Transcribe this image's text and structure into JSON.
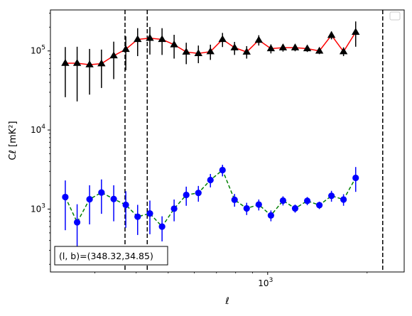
{
  "chart_data": {
    "type": "line",
    "xscale": "log",
    "yscale": "log",
    "xlim": [
      220,
      2590
    ],
    "ylim": [
      160,
      330000
    ],
    "xlabel": "ℓ",
    "ylabel": "Cℓ  [mK²]",
    "xticks": [
      {
        "value": 1000,
        "base": "10",
        "exp": "3"
      }
    ],
    "yticks": [
      {
        "value": 1000,
        "base": "10",
        "exp": "3"
      },
      {
        "value": 10000,
        "base": "10",
        "exp": "4"
      },
      {
        "value": 100000,
        "base": "10",
        "exp": "5"
      }
    ],
    "grid": false,
    "legend": {
      "placement": "top-right",
      "entries": []
    },
    "annotation": "(l, b)=(348.32,34.85)",
    "vlines": [
      370,
      432,
      2230
    ],
    "series": [
      {
        "color": "#ff0000",
        "marker": "triangle",
        "marker_color": "#000000",
        "linestyle": "solid",
        "points": [
          {
            "x": 244,
            "y": 70000,
            "lo": 26000,
            "hi": 112000
          },
          {
            "x": 265,
            "y": 70000,
            "lo": 23000,
            "hi": 113000
          },
          {
            "x": 289,
            "y": 67000,
            "lo": 28000,
            "hi": 106000
          },
          {
            "x": 314,
            "y": 69000,
            "lo": 34000,
            "hi": 104000
          },
          {
            "x": 342,
            "y": 87000,
            "lo": 44000,
            "hi": 131000
          },
          {
            "x": 372,
            "y": 105000,
            "lo": 57000,
            "hi": 153000
          },
          {
            "x": 404,
            "y": 140000,
            "lo": 86000,
            "hi": 194000
          },
          {
            "x": 440,
            "y": 145000,
            "lo": 90000,
            "hi": 201000
          },
          {
            "x": 479,
            "y": 140000,
            "lo": 89000,
            "hi": 194000
          },
          {
            "x": 521,
            "y": 120000,
            "lo": 80000,
            "hi": 160000
          },
          {
            "x": 567,
            "y": 97000,
            "lo": 68000,
            "hi": 127000
          },
          {
            "x": 617,
            "y": 93000,
            "lo": 70000,
            "hi": 117000
          },
          {
            "x": 671,
            "y": 98000,
            "lo": 77000,
            "hi": 120000
          },
          {
            "x": 730,
            "y": 140000,
            "lo": 112000,
            "hi": 169000
          },
          {
            "x": 794,
            "y": 110000,
            "lo": 89000,
            "hi": 130000
          },
          {
            "x": 864,
            "y": 97000,
            "lo": 80000,
            "hi": 115000
          },
          {
            "x": 940,
            "y": 137000,
            "lo": 117000,
            "hi": 158000
          },
          {
            "x": 1023,
            "y": 107000,
            "lo": 93000,
            "hi": 121000
          },
          {
            "x": 1113,
            "y": 110000,
            "lo": 98000,
            "hi": 122000
          },
          {
            "x": 1211,
            "y": 110000,
            "lo": 99000,
            "hi": 121000
          },
          {
            "x": 1318,
            "y": 107000,
            "lo": 97000,
            "hi": 117000
          },
          {
            "x": 1434,
            "y": 100000,
            "lo": 91000,
            "hi": 109000
          },
          {
            "x": 1560,
            "y": 158000,
            "lo": 140000,
            "hi": 176000
          },
          {
            "x": 1697,
            "y": 98000,
            "lo": 86000,
            "hi": 111000
          },
          {
            "x": 1847,
            "y": 173000,
            "lo": 113000,
            "hi": 236000
          }
        ]
      },
      {
        "color": "#008000",
        "marker": "circle",
        "marker_color": "#0000ff",
        "linestyle": "dashed",
        "points": [
          {
            "x": 244,
            "y": 1420,
            "lo": 540,
            "hi": 2300
          },
          {
            "x": 265,
            "y": 680,
            "lo": 210,
            "hi": 1150
          },
          {
            "x": 289,
            "y": 1330,
            "lo": 640,
            "hi": 2000
          },
          {
            "x": 314,
            "y": 1620,
            "lo": 870,
            "hi": 2370
          },
          {
            "x": 342,
            "y": 1340,
            "lo": 700,
            "hi": 2000
          },
          {
            "x": 372,
            "y": 1130,
            "lo": 580,
            "hi": 1680
          },
          {
            "x": 404,
            "y": 800,
            "lo": 470,
            "hi": 1130
          },
          {
            "x": 440,
            "y": 880,
            "lo": 480,
            "hi": 1280
          },
          {
            "x": 479,
            "y": 600,
            "lo": 390,
            "hi": 810
          },
          {
            "x": 521,
            "y": 1010,
            "lo": 700,
            "hi": 1320
          },
          {
            "x": 567,
            "y": 1510,
            "lo": 1100,
            "hi": 1920
          },
          {
            "x": 617,
            "y": 1600,
            "lo": 1240,
            "hi": 1960
          },
          {
            "x": 671,
            "y": 2330,
            "lo": 1880,
            "hi": 2780
          },
          {
            "x": 730,
            "y": 3110,
            "lo": 2590,
            "hi": 3630
          },
          {
            "x": 794,
            "y": 1310,
            "lo": 1070,
            "hi": 1550
          },
          {
            "x": 864,
            "y": 1020,
            "lo": 840,
            "hi": 1200
          },
          {
            "x": 940,
            "y": 1140,
            "lo": 960,
            "hi": 1320
          },
          {
            "x": 1023,
            "y": 830,
            "lo": 700,
            "hi": 960
          },
          {
            "x": 1113,
            "y": 1280,
            "lo": 1110,
            "hi": 1450
          },
          {
            "x": 1211,
            "y": 1020,
            "lo": 900,
            "hi": 1140
          },
          {
            "x": 1318,
            "y": 1270,
            "lo": 1120,
            "hi": 1420
          },
          {
            "x": 1434,
            "y": 1120,
            "lo": 1000,
            "hi": 1240
          },
          {
            "x": 1560,
            "y": 1470,
            "lo": 1240,
            "hi": 1700
          },
          {
            "x": 1697,
            "y": 1320,
            "lo": 1100,
            "hi": 1540
          },
          {
            "x": 1847,
            "y": 2480,
            "lo": 1650,
            "hi": 3400
          }
        ]
      }
    ]
  }
}
